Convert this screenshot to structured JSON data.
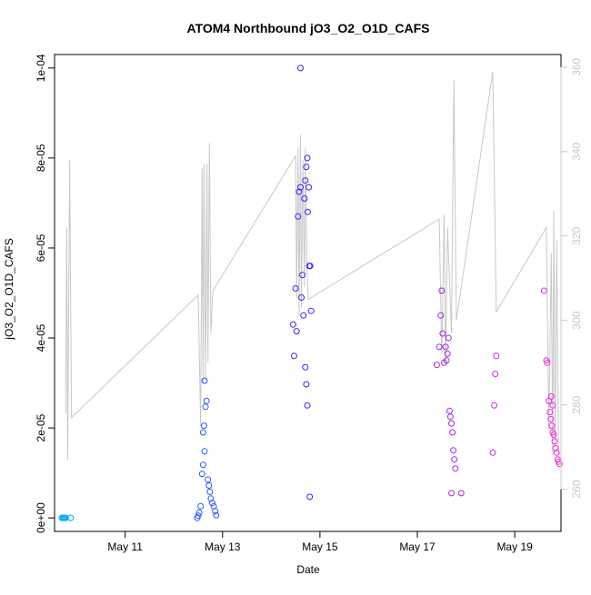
{
  "chart_data": {
    "type": "scatter",
    "title": "ATOM4 Northbound jO3_O2_O1D_CAFS",
    "xlabel": "Date",
    "ylabel": "jO3_O2_O1D_CAFS",
    "x_unit": "days (May 2016)",
    "xlim": [
      9.55,
      19.95
    ],
    "ylim": [
      -3e-06,
      0.000103
    ],
    "y2lim": [
      250,
      363
    ],
    "x_ticks": [
      {
        "value": 11,
        "label": "May 11"
      },
      {
        "value": 13,
        "label": "May 13"
      },
      {
        "value": 15,
        "label": "May 15"
      },
      {
        "value": 17,
        "label": "May 17"
      },
      {
        "value": 19,
        "label": "May 19"
      }
    ],
    "y_ticks": [
      {
        "value": 0,
        "label": "0e+00"
      },
      {
        "value": 2e-05,
        "label": "2e-05"
      },
      {
        "value": 4e-05,
        "label": "4e-05"
      },
      {
        "value": 6e-05,
        "label": "6e-05"
      },
      {
        "value": 8e-05,
        "label": "8e-05"
      },
      {
        "value": 0.0001,
        "label": "1e-04"
      }
    ],
    "y2_ticks": [
      {
        "value": 260,
        "label": "260"
      },
      {
        "value": 280,
        "label": "280"
      },
      {
        "value": 300,
        "label": "300"
      },
      {
        "value": 320,
        "label": "320"
      },
      {
        "value": 340,
        "label": "340"
      },
      {
        "value": 360,
        "label": "360"
      }
    ],
    "colors": {
      "line": "#c8c8c8",
      "frame": "#000000",
      "right_axis": "#c8c8c8",
      "point_start": "#00b4ff",
      "point_mid": "#3c1efa",
      "point_end": "#ff28dc"
    },
    "series": [
      {
        "type": "line",
        "axis": "right",
        "values": [
          [
            9.78,
            278
          ],
          [
            9.8,
            322
          ],
          [
            9.82,
            267
          ],
          [
            9.86,
            338
          ],
          [
            9.9,
            277
          ],
          [
            12.5,
            306
          ],
          [
            12.55,
            275
          ],
          [
            12.58,
            336
          ],
          [
            12.6,
            285
          ],
          [
            12.62,
            337
          ],
          [
            12.65,
            285
          ],
          [
            12.68,
            337
          ],
          [
            12.7,
            290
          ],
          [
            12.73,
            342
          ],
          [
            12.76,
            297
          ],
          [
            12.8,
            307
          ],
          [
            14.5,
            339
          ],
          [
            14.52,
            305
          ],
          [
            14.55,
            341
          ],
          [
            14.57,
            301
          ],
          [
            14.6,
            344
          ],
          [
            14.62,
            303
          ],
          [
            14.65,
            338
          ],
          [
            14.68,
            308
          ],
          [
            14.7,
            341
          ],
          [
            14.73,
            314
          ],
          [
            14.76,
            305
          ],
          [
            17.45,
            324
          ],
          [
            17.5,
            292
          ],
          [
            17.55,
            325
          ],
          [
            17.58,
            290
          ],
          [
            17.62,
            322
          ],
          [
            17.7,
            297
          ],
          [
            17.75,
            357
          ],
          [
            17.8,
            300
          ],
          [
            18.55,
            359
          ],
          [
            18.62,
            302
          ],
          [
            19.65,
            322
          ],
          [
            19.7,
            274
          ],
          [
            19.75,
            316
          ],
          [
            19.78,
            268
          ],
          [
            19.8,
            326
          ],
          [
            19.83,
            270
          ],
          [
            19.86,
            319
          ],
          [
            19.9,
            268
          ]
        ]
      },
      {
        "type": "scatter",
        "axis": "left",
        "values": [
          [
            9.7,
            0.0
          ],
          [
            9.72,
            0.0
          ],
          [
            9.74,
            0.0
          ],
          [
            9.76,
            0.0
          ],
          [
            9.78,
            0.0
          ],
          [
            9.88,
            0.0
          ],
          [
            12.48,
            0.0
          ],
          [
            12.5,
            5e-07
          ],
          [
            12.52,
            1.2e-06
          ],
          [
            12.55,
            2.6e-06
          ],
          [
            12.58,
            9.8e-06
          ],
          [
            12.6,
            1.18e-05
          ],
          [
            12.63,
            1.48e-05
          ],
          [
            12.6,
            1.9e-05
          ],
          [
            12.62,
            2.05e-05
          ],
          [
            12.65,
            2.47e-05
          ],
          [
            12.67,
            2.6e-05
          ],
          [
            12.63,
            3.05e-05
          ],
          [
            12.7,
            8.5e-06
          ],
          [
            12.72,
            7.2e-06
          ],
          [
            12.74,
            5.8e-06
          ],
          [
            12.76,
            4.3e-06
          ],
          [
            12.79,
            3.3e-06
          ],
          [
            12.82,
            2.6e-06
          ],
          [
            12.85,
            1.5e-06
          ],
          [
            12.87,
            6e-07
          ],
          [
            14.45,
            4.3e-05
          ],
          [
            14.47,
            3.6e-05
          ],
          [
            14.5,
            5.1e-05
          ],
          [
            14.52,
            4.15e-05
          ],
          [
            14.55,
            6.7e-05
          ],
          [
            14.57,
            7.25e-05
          ],
          [
            14.6,
            7.35e-05
          ],
          [
            14.62,
            4.9e-05
          ],
          [
            14.64,
            5.4e-05
          ],
          [
            14.66,
            4.5e-05
          ],
          [
            14.68,
            7.1e-05
          ],
          [
            14.7,
            7.5e-05
          ],
          [
            14.72,
            7.8e-05
          ],
          [
            14.74,
            8e-05
          ],
          [
            14.6,
            0.0001
          ],
          [
            14.75,
            6.8e-05
          ],
          [
            14.77,
            7.35e-05
          ],
          [
            14.78,
            5.6e-05
          ],
          [
            14.8,
            5.6e-05
          ],
          [
            14.82,
            4.6e-05
          ],
          [
            14.7,
            3.35e-05
          ],
          [
            14.72,
            2.97e-05
          ],
          [
            14.74,
            2.5e-05
          ],
          [
            14.79,
            4.7e-06
          ],
          [
            17.4,
            3.4e-05
          ],
          [
            17.45,
            3.8e-05
          ],
          [
            17.48,
            4.5e-05
          ],
          [
            17.5,
            5.05e-05
          ],
          [
            17.52,
            4.1e-05
          ],
          [
            17.55,
            3.45e-05
          ],
          [
            17.58,
            3.8e-05
          ],
          [
            17.6,
            3.5e-05
          ],
          [
            17.62,
            3.65e-05
          ],
          [
            17.64,
            4e-05
          ],
          [
            17.66,
            2.38e-05
          ],
          [
            17.68,
            2.25e-05
          ],
          [
            17.7,
            2.1e-05
          ],
          [
            17.72,
            1.9e-05
          ],
          [
            17.74,
            1.5e-05
          ],
          [
            17.76,
            1.3e-05
          ],
          [
            17.78,
            1.1e-05
          ],
          [
            17.7,
            5.5e-06
          ],
          [
            17.9,
            5.5e-06
          ],
          [
            18.55,
            1.45e-05
          ],
          [
            18.58,
            2.5e-05
          ],
          [
            18.6,
            3.2e-05
          ],
          [
            18.62,
            3.6e-05
          ],
          [
            19.6,
            5.05e-05
          ],
          [
            19.65,
            3.5e-05
          ],
          [
            19.67,
            3.45e-05
          ],
          [
            19.7,
            2.6e-05
          ],
          [
            19.72,
            2.35e-05
          ],
          [
            19.74,
            2.2e-05
          ],
          [
            19.76,
            2.05e-05
          ],
          [
            19.78,
            1.9e-05
          ],
          [
            19.8,
            1.85e-05
          ],
          [
            19.82,
            1.7e-05
          ],
          [
            19.84,
            1.55e-05
          ],
          [
            19.86,
            1.45e-05
          ],
          [
            19.88,
            1.3e-05
          ],
          [
            19.9,
            1.25e-05
          ],
          [
            19.92,
            1.2e-05
          ],
          [
            19.75,
            2.7e-05
          ],
          [
            19.78,
            2.5e-05
          ]
        ]
      }
    ]
  }
}
